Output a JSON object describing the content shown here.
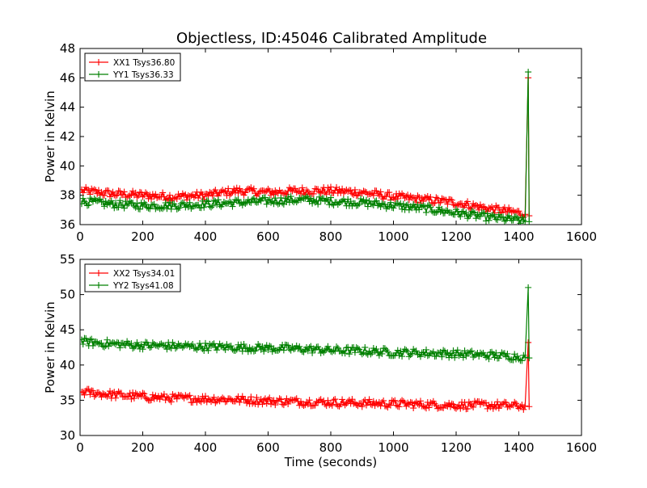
{
  "title": "Objectless, ID:45046 Calibrated Amplitude",
  "colors": {
    "xx": "#ff0000",
    "yy": "#008000"
  },
  "chart_data": [
    {
      "type": "line",
      "marker": "+",
      "ylabel": "Power in Kelvin",
      "xlabel": "",
      "xlim": [
        0,
        1600
      ],
      "ylim": [
        36,
        48
      ],
      "xticks": [
        "0",
        "200",
        "400",
        "600",
        "800",
        "1000",
        "1200",
        "1400",
        "1600"
      ],
      "yticks": [
        "36",
        "38",
        "40",
        "42",
        "44",
        "46",
        "48"
      ],
      "legend_position": "top-left",
      "series": [
        {
          "name": "XX1 Tsys36.80",
          "color": "#ff0000",
          "x": [
            5,
            100,
            200,
            300,
            400,
            500,
            600,
            700,
            800,
            900,
            1000,
            1100,
            1200,
            1300,
            1400,
            1420,
            1430,
            1433
          ],
          "y": [
            38.3,
            38.1,
            38.0,
            37.9,
            38.0,
            38.3,
            38.2,
            38.3,
            38.3,
            38.2,
            37.9,
            37.7,
            37.5,
            37.1,
            36.8,
            36.7,
            46.0,
            36.6
          ]
        },
        {
          "name": "YY1 Tsys36.33",
          "color": "#008000",
          "x": [
            5,
            100,
            200,
            300,
            400,
            500,
            600,
            700,
            800,
            900,
            1000,
            1100,
            1200,
            1300,
            1400,
            1420,
            1430,
            1433
          ],
          "y": [
            37.6,
            37.4,
            37.3,
            37.3,
            37.4,
            37.5,
            37.6,
            37.7,
            37.6,
            37.5,
            37.3,
            37.1,
            36.8,
            36.5,
            36.3,
            36.2,
            46.4,
            36.2
          ]
        }
      ]
    },
    {
      "type": "line",
      "marker": "+",
      "ylabel": "Power in Kelvin",
      "xlabel": "Time (seconds)",
      "xlim": [
        0,
        1600
      ],
      "ylim": [
        30,
        55
      ],
      "xticks": [
        "0",
        "200",
        "400",
        "600",
        "800",
        "1000",
        "1200",
        "1400",
        "1600"
      ],
      "yticks": [
        "30",
        "35",
        "40",
        "45",
        "50",
        "55"
      ],
      "legend_position": "top-left",
      "series": [
        {
          "name": "XX2 Tsys34.01",
          "color": "#ff0000",
          "x": [
            5,
            100,
            200,
            300,
            400,
            500,
            600,
            700,
            800,
            900,
            1000,
            1100,
            1200,
            1300,
            1400,
            1420,
            1430,
            1433
          ],
          "y": [
            36.2,
            35.8,
            35.5,
            35.3,
            35.2,
            35.1,
            34.9,
            34.8,
            34.7,
            34.6,
            34.5,
            34.4,
            34.3,
            34.3,
            34.2,
            34.2,
            43.2,
            34.1
          ]
        },
        {
          "name": "YY2 Tsys41.08",
          "color": "#008000",
          "x": [
            5,
            100,
            200,
            300,
            400,
            500,
            600,
            700,
            800,
            900,
            1000,
            1100,
            1200,
            1300,
            1400,
            1420,
            1430,
            1433
          ],
          "y": [
            43.3,
            43.0,
            42.8,
            42.7,
            42.6,
            42.5,
            42.4,
            42.3,
            42.1,
            42.0,
            41.8,
            41.7,
            41.6,
            41.4,
            41.2,
            41.1,
            51.0,
            41.0
          ]
        }
      ]
    }
  ]
}
